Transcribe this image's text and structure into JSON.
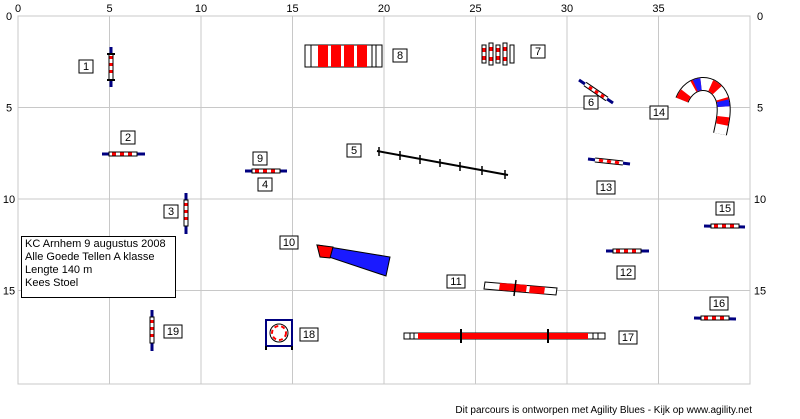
{
  "course": {
    "grid_max_x": 40,
    "grid_max_y": 20,
    "x_ticks": [
      "0",
      "5",
      "10",
      "15",
      "20",
      "25",
      "30",
      "35"
    ],
    "y_ticks": [
      "0",
      "5",
      "10",
      "15"
    ],
    "colors": {
      "red": "#ff0000",
      "blue": "#1a1aff",
      "navy": "#000080",
      "pole": "#e8e8e8",
      "grid": "#c8c8c8"
    }
  },
  "info": {
    "line1": "KC Arnhem 9 augustus 2008",
    "line2": "Alle Goede Tellen  A klasse",
    "line3": "Lengte 140 m",
    "line4": "Kees Stoel"
  },
  "footer": "Dit parcours is ontworpen met Agility Blues - Kijk op www.agility.net",
  "obstacles": [
    {
      "number": "1",
      "type": "jump",
      "x": 5.1,
      "y": 1.9,
      "orient": "vertical"
    },
    {
      "number": "2",
      "type": "jump",
      "x": 5.8,
      "y": 7.4,
      "orient": "horizontal"
    },
    {
      "number": "3",
      "type": "jump",
      "x": 9.2,
      "y": 10.7,
      "orient": "vertical"
    },
    {
      "number": "4",
      "type": "jump",
      "x": 14.0,
      "y": 8.4,
      "orient": "horizontal"
    },
    {
      "number": "5",
      "type": "dogwalk",
      "x1": 19.8,
      "y1": 7.3,
      "x2": 26.9,
      "y2": 8.6
    },
    {
      "number": "6",
      "type": "jump",
      "x": 31.8,
      "y": 4.5,
      "orient": "diagonal"
    },
    {
      "number": "7",
      "type": "weave",
      "x": 26.0,
      "y": 2.0
    },
    {
      "number": "8",
      "type": "tunnel-straight",
      "x": 18.6,
      "y": 2.0
    },
    {
      "number": "9",
      "type": "jump",
      "x": 14.0,
      "y": 8.4,
      "orient": "horizontal"
    },
    {
      "number": "10",
      "type": "chute",
      "x": 18.0,
      "y": 13.2
    },
    {
      "number": "11",
      "type": "seesaw",
      "x": 26.8,
      "y": 14.9
    },
    {
      "number": "12",
      "type": "jump",
      "x": 33.3,
      "y": 12.8,
      "orient": "horizontal"
    },
    {
      "number": "13",
      "type": "jump",
      "x": 33.0,
      "y": 8.2,
      "orient": "horizontal"
    },
    {
      "number": "14",
      "type": "tunnel-curved",
      "x": 37.3,
      "y": 4.6
    },
    {
      "number": "15",
      "type": "jump",
      "x": 38.6,
      "y": 11.3,
      "orient": "horizontal"
    },
    {
      "number": "16",
      "type": "jump",
      "x": 38.2,
      "y": 16.4,
      "orient": "horizontal"
    },
    {
      "number": "17",
      "type": "dogwalk-flat",
      "x": 26.9,
      "y": 17.5
    },
    {
      "number": "18",
      "type": "tire",
      "x": 14.2,
      "y": 17.4
    },
    {
      "number": "19",
      "type": "jump",
      "x": 7.6,
      "y": 17.6,
      "orient": "vertical"
    }
  ]
}
